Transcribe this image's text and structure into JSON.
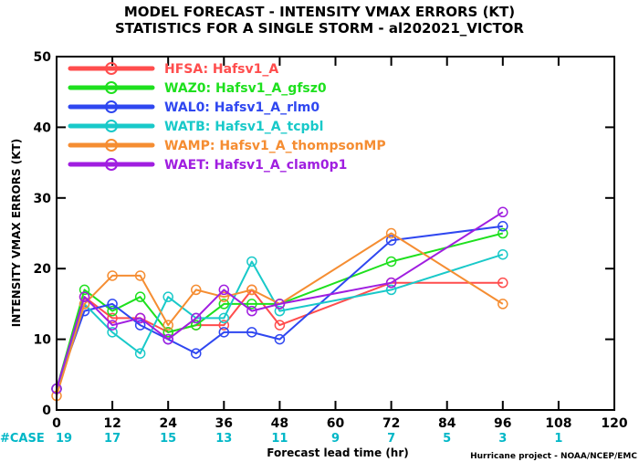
{
  "chart_data": {
    "type": "line",
    "title": "MODEL FORECAST - INTENSITY VMAX ERRORS (KT)",
    "subtitle": "STATISTICS FOR A SINGLE STORM - al202021_VICTOR",
    "xlabel": "Forecast lead time (hr)",
    "ylabel": "INTENSITY VMAX ERRORS (KT)",
    "xlim": [
      0,
      120
    ],
    "ylim": [
      0,
      50
    ],
    "x_ticks": [
      0,
      12,
      24,
      36,
      48,
      60,
      72,
      84,
      96,
      108,
      120
    ],
    "y_ticks": [
      0,
      10,
      20,
      30,
      40,
      50
    ],
    "legend_position": "top-left",
    "series": [
      {
        "name": "HFSA: Hafsv1_A",
        "color": "#ff4d4d",
        "x": [
          0,
          6,
          12,
          18,
          24,
          30,
          36,
          42,
          48,
          72,
          96
        ],
        "y": [
          3,
          16,
          13,
          13,
          11,
          12,
          12,
          17,
          12,
          18,
          18
        ]
      },
      {
        "name": "WAZ0: Hafsv1_A_gfsz0",
        "color": "#1ee01e",
        "x": [
          0,
          6,
          12,
          18,
          24,
          30,
          36,
          42,
          48,
          72,
          96
        ],
        "y": [
          3,
          17,
          14,
          16,
          11,
          12,
          15,
          15,
          15,
          21,
          25
        ]
      },
      {
        "name": "WAL0: Hafsv1_A_rlm0",
        "color": "#2f47f0",
        "x": [
          0,
          6,
          12,
          18,
          24,
          30,
          36,
          42,
          48,
          72,
          96
        ],
        "y": [
          3,
          14,
          15,
          12,
          10,
          8,
          11,
          11,
          10,
          24,
          26
        ]
      },
      {
        "name": "WATB: Hafsv1_A_tcpbl",
        "color": "#19c9c9",
        "x": [
          0,
          6,
          12,
          18,
          24,
          30,
          36,
          42,
          48,
          72,
          96
        ],
        "y": [
          3,
          15,
          11,
          8,
          16,
          13,
          13,
          21,
          14,
          17,
          22
        ]
      },
      {
        "name": "WAMP: Hafsv1_A_thompsonMP",
        "color": "#f58d32",
        "x": [
          0,
          6,
          12,
          18,
          24,
          30,
          36,
          42,
          48,
          72,
          96
        ],
        "y": [
          2,
          15,
          19,
          19,
          12,
          17,
          16,
          17,
          15,
          25,
          15
        ]
      },
      {
        "name": "WAET: Hafsv1_A_clam0p1",
        "color": "#a01ee0",
        "x": [
          0,
          6,
          12,
          18,
          24,
          30,
          36,
          42,
          48,
          72,
          96
        ],
        "y": [
          3,
          16,
          12,
          13,
          10,
          13,
          17,
          14,
          15,
          18,
          28
        ]
      }
    ],
    "case_label": "#CASE",
    "case_counts": [
      {
        "x": 0,
        "n": "19"
      },
      {
        "x": 12,
        "n": "17"
      },
      {
        "x": 24,
        "n": "15"
      },
      {
        "x": 36,
        "n": "13"
      },
      {
        "x": 48,
        "n": "11"
      },
      {
        "x": 60,
        "n": "9"
      },
      {
        "x": 72,
        "n": "7"
      },
      {
        "x": 84,
        "n": "5"
      },
      {
        "x": 96,
        "n": "3"
      },
      {
        "x": 108,
        "n": "1"
      }
    ],
    "credit": "Hurricane project - NOAA/NCEP/EMC"
  }
}
